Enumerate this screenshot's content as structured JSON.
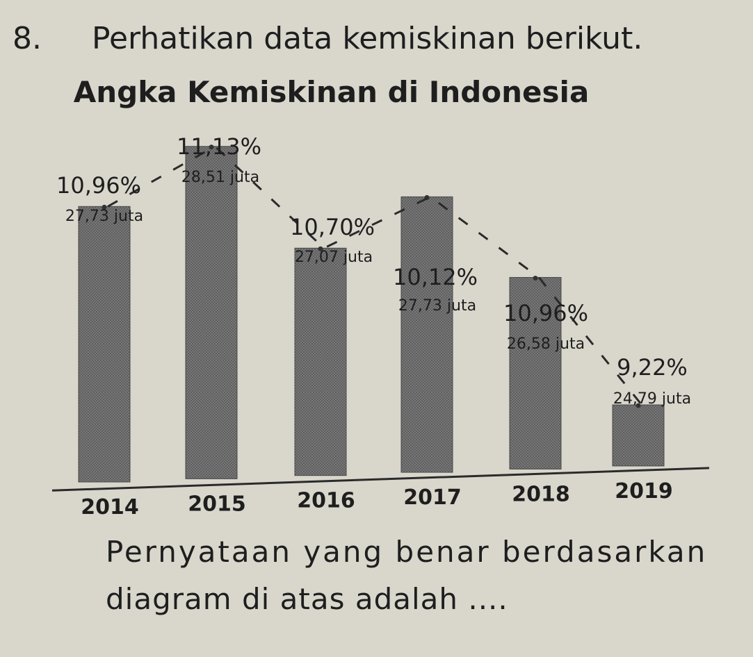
{
  "question": {
    "number": "8.",
    "prompt": "Perhatikan data kemiskinan berikut."
  },
  "chart_data": {
    "type": "bar",
    "title": "Angka Kemiskinan di Indonesia",
    "categories": [
      "2014",
      "2015",
      "2016",
      "2017",
      "2018",
      "2019"
    ],
    "percent_labels": [
      "10,96%",
      "11,13%",
      "10,70%",
      "10,12%",
      "10,96%",
      "9,22%"
    ],
    "count_labels": [
      "27,73 juta",
      "28,51 juta",
      "27,07 juta",
      "27,73 juta",
      "26,58 juta",
      "24,79 juta"
    ],
    "values": [
      27.73,
      28.51,
      27.07,
      27.73,
      26.58,
      24.79
    ],
    "series": [
      {
        "values": [
          27.73,
          28.51,
          27.07,
          27.73,
          26.58,
          24.79
        ]
      }
    ],
    "trend_line": "dashed",
    "colors": {
      "bar": "#5f5f5f",
      "axis": "#2a2a2a",
      "background": "#d9d6cc"
    }
  },
  "statement": {
    "line1": "Pernyataan yang benar berdasarkan",
    "line2": "diagram di atas adalah ...."
  }
}
